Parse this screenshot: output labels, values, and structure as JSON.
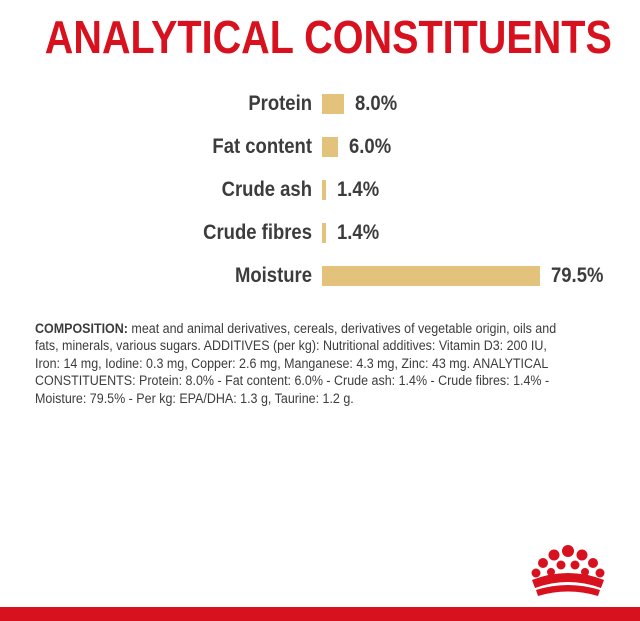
{
  "title": "ANALYTICAL CONSTITUENTS",
  "chart_data": {
    "type": "bar",
    "orientation": "horizontal",
    "categories": [
      "Protein",
      "Fat content",
      "Crude ash",
      "Crude fibres",
      "Moisture"
    ],
    "values": [
      8.0,
      6.0,
      1.4,
      1.4,
      79.5
    ],
    "value_labels": [
      "8.0%",
      "6.0%",
      "1.4%",
      "1.4%",
      "79.5%"
    ],
    "unit": "%",
    "bar_color": "#e3c27c",
    "grid": false
  },
  "composition": {
    "heading": "COMPOSITION:",
    "text": " meat and animal derivatives, cereals, derivatives of vegetable origin, oils and fats, minerals, various sugars. ADDITIVES (per kg): Nutritional additives: Vitamin D3: 200 IU, Iron: 14 mg, Iodine: 0.3 mg, Copper: 2.6 mg, Manganese: 4.3 mg, Zinc: 43 mg. ANALYTICAL CONSTITUENTS: Protein: 8.0% - Fat content: 6.0% - Crude ash: 1.4% - Crude fibres: 1.4% - Moisture: 79.5% - Per kg: EPA/DHA: 1.3 g, Taurine: 1.2 g."
  },
  "brand": {
    "logo_icon": "royal-canin-crown-icon",
    "accent_color": "#d8111f"
  }
}
